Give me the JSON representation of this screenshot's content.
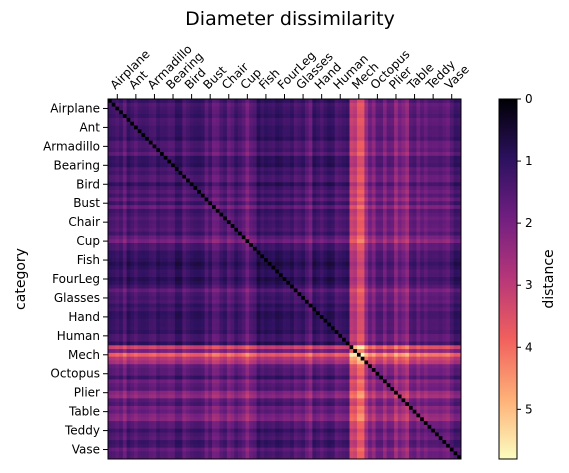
{
  "chart_data": {
    "type": "heatmap",
    "title": "Diameter dissimilarity",
    "ylabel": "category",
    "colorbar_label": "distance",
    "x_tick_position": "top",
    "categories": [
      "Airplane",
      "Ant",
      "Armadillo",
      "Bearing",
      "Bird",
      "Bust",
      "Chair",
      "Cup",
      "Fish",
      "FourLeg",
      "Glasses",
      "Hand",
      "Human",
      "Mech",
      "Octopus",
      "Plier",
      "Table",
      "Teddy",
      "Vase"
    ],
    "colorbar_ticks": [
      "0",
      "1",
      "2",
      "3",
      "4",
      "5"
    ],
    "colorbar_range": [
      0,
      5.8
    ],
    "colormap": "magma_r",
    "colormap_stops": [
      "#fcfdbf",
      "#feb078",
      "#f1605d",
      "#b73779",
      "#721f81",
      "#2c115f",
      "#000004"
    ],
    "grid": false,
    "category_mean_distance": [
      1.1,
      1.0,
      1.3,
      0.9,
      1.1,
      1.4,
      1.4,
      1.6,
      0.6,
      0.7,
      1.3,
      0.8,
      0.9,
      3.6,
      1.7,
      2.0,
      2.1,
      1.4,
      1.3
    ]
  }
}
